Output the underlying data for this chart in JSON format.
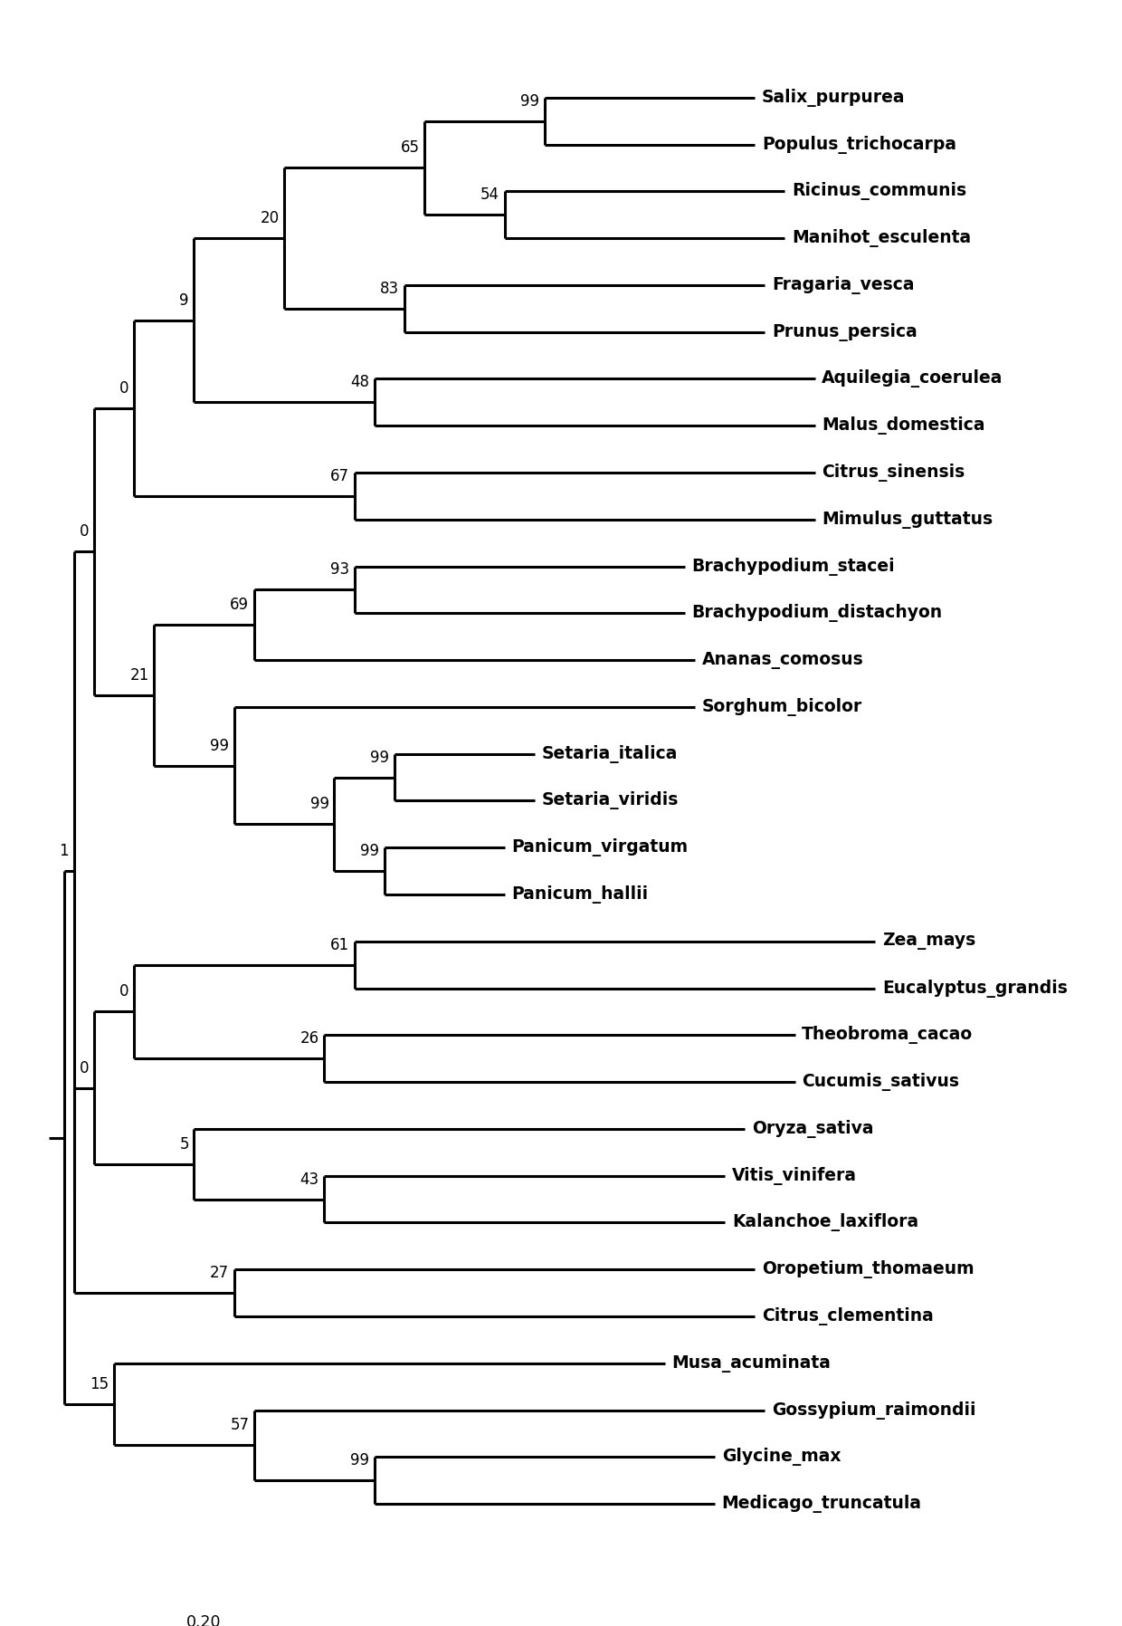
{
  "taxa": [
    "Salix_purpurea",
    "Populus_trichocarpa",
    "Ricinus_communis",
    "Manihot_esculenta",
    "Fragaria_vesca",
    "Prunus_persica",
    "Aquilegia_coerulea",
    "Malus_domestica",
    "Citrus_sinensis",
    "Mimulus_guttatus",
    "Brachypodium_stacei",
    "Brachypodium_distachyon",
    "Ananas_comosus",
    "Sorghum_bicolor",
    "Setaria_italica",
    "Setaria_viridis",
    "Panicum_virgatum",
    "Panicum_hallii",
    "Zea_mays",
    "Eucalyptus_grandis",
    "Theobroma_cacao",
    "Cucumis_sativus",
    "Oryza_sativa",
    "Vitis_vinifera",
    "Kalanchoe_laxiflora",
    "Oropetium_thomaeum",
    "Citrus_clementina",
    "Musa_acuminata",
    "Gossypium_raimondii",
    "Glycine_max",
    "Medicago_truncatula"
  ],
  "line_color": "#000000",
  "line_width": 2.2,
  "font_size": 13.5,
  "bootstrap_font_size": 12.0,
  "label_font": "DejaVu Sans",
  "scale_bar_value": "0.20",
  "background_color": "#ffffff"
}
